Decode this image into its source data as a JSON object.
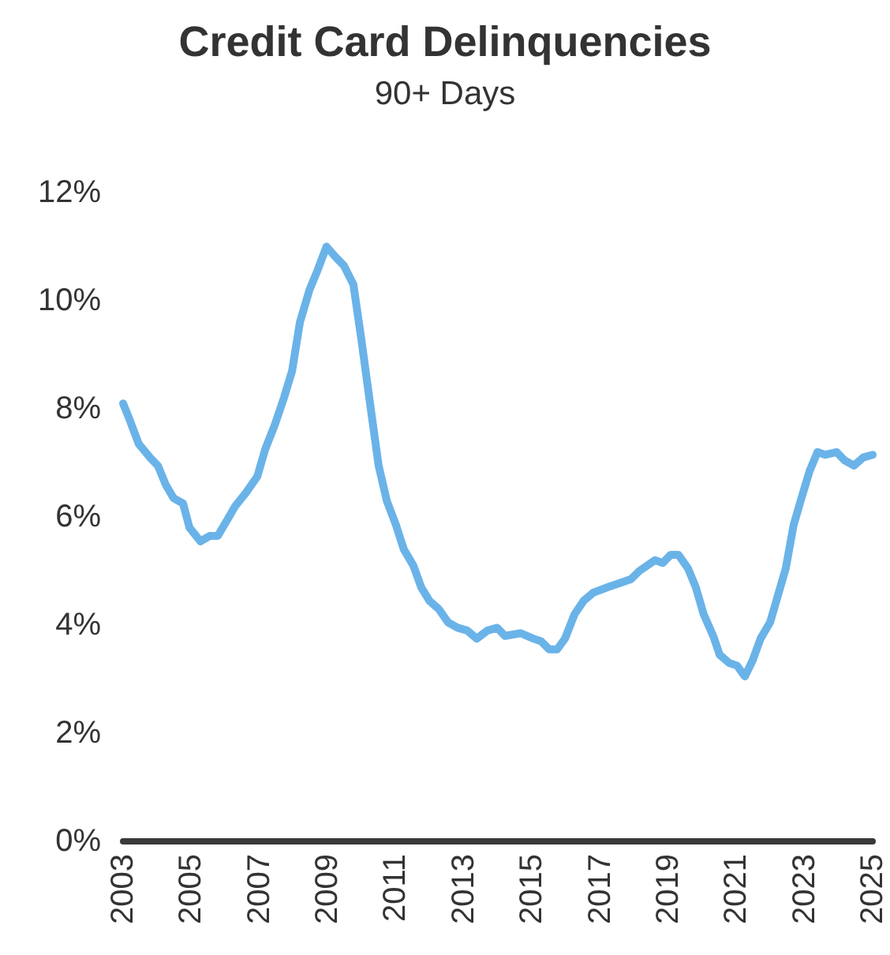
{
  "chart_data": {
    "type": "line",
    "title": "Credit Card Delinquencies",
    "subtitle": "90+ Days",
    "x": [
      2003.0,
      2003.19,
      2003.46,
      2003.79,
      2004.02,
      2004.25,
      2004.48,
      2004.76,
      2004.95,
      2005.27,
      2005.55,
      2005.78,
      2006.06,
      2006.29,
      2006.61,
      2006.94,
      2007.17,
      2007.45,
      2007.72,
      2007.96,
      2008.19,
      2008.47,
      2008.7,
      2008.97,
      2009.25,
      2009.48,
      2009.76,
      2009.99,
      2010.27,
      2010.5,
      2010.74,
      2011.01,
      2011.24,
      2011.52,
      2011.75,
      2011.99,
      2012.26,
      2012.54,
      2012.82,
      2013.1,
      2013.38,
      2013.7,
      2013.98,
      2014.21,
      2014.67,
      2015.04,
      2015.27,
      2015.51,
      2015.74,
      2015.97,
      2016.25,
      2016.52,
      2016.8,
      2017.22,
      2017.68,
      2017.91,
      2018.15,
      2018.38,
      2018.61,
      2018.84,
      2019.07,
      2019.3,
      2019.58,
      2019.81,
      2020.04,
      2020.32,
      2020.51,
      2020.79,
      2021.02,
      2021.25,
      2021.48,
      2021.71,
      2021.99,
      2022.22,
      2022.45,
      2022.68,
      2022.91,
      2023.15,
      2023.38,
      2023.61,
      2023.94,
      2024.17,
      2024.45,
      2024.72,
      2025.0
    ],
    "series": [
      {
        "color": "#6ab3e8",
        "values": [
          8.1,
          7.8,
          7.35,
          7.1,
          6.95,
          6.6,
          6.35,
          6.25,
          5.8,
          5.55,
          5.65,
          5.65,
          5.95,
          6.2,
          6.45,
          6.75,
          7.25,
          7.7,
          8.2,
          8.7,
          9.6,
          10.2,
          10.55,
          11.0,
          10.8,
          10.65,
          10.3,
          9.3,
          8.0,
          6.95,
          6.3,
          5.85,
          5.4,
          5.1,
          4.7,
          4.45,
          4.3,
          4.05,
          3.95,
          3.9,
          3.75,
          3.9,
          3.95,
          3.8,
          3.85,
          3.75,
          3.7,
          3.55,
          3.55,
          3.75,
          4.2,
          4.45,
          4.6,
          4.7,
          4.8,
          4.85,
          5.0,
          5.1,
          5.2,
          5.15,
          5.3,
          5.3,
          5.05,
          4.7,
          4.2,
          3.8,
          3.45,
          3.3,
          3.25,
          3.05,
          3.35,
          3.75,
          4.05,
          4.55,
          5.05,
          5.85,
          6.35,
          6.85,
          7.2,
          7.15,
          7.2,
          7.05,
          6.95,
          7.1,
          7.15
        ]
      }
    ],
    "xlim": [
      2003,
      2025
    ],
    "xticks": [
      2003,
      2005,
      2007,
      2009,
      2011,
      2013,
      2015,
      2017,
      2019,
      2021,
      2023,
      2025
    ],
    "ylim": [
      0,
      12
    ],
    "yticks": [
      {
        "value": 0,
        "label": "0%"
      },
      {
        "value": 2,
        "label": "2%"
      },
      {
        "value": 4,
        "label": "4%"
      },
      {
        "value": 6,
        "label": "6%"
      },
      {
        "value": 8,
        "label": "8%"
      },
      {
        "value": 10,
        "label": "10%"
      },
      {
        "value": 12,
        "label": "12%"
      }
    ],
    "grid": false,
    "marker": "none",
    "line_style": "solid"
  }
}
